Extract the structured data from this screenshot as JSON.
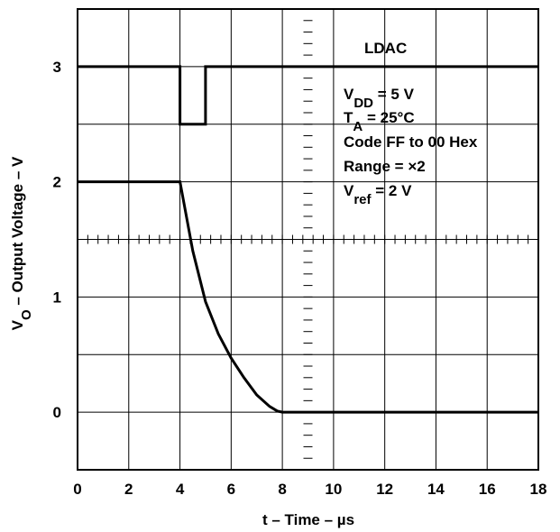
{
  "chart_data": {
    "type": "line",
    "title": "",
    "xlabel": "t – Time – µs",
    "ylabel": {
      "prefix": "V",
      "sub": "O",
      "suffix": " – Output Voltage – V"
    },
    "xlim": [
      0,
      18
    ],
    "ylim": [
      -0.5,
      3.5
    ],
    "x_ticks": [
      "0",
      "2",
      "4",
      "6",
      "8",
      "10",
      "12",
      "14",
      "16",
      "18"
    ],
    "y_ticks": [
      {
        "value": 0,
        "label": "0"
      },
      {
        "value": 1,
        "label": "1"
      },
      {
        "value": 2,
        "label": "2"
      },
      {
        "value": 3,
        "label": "3"
      }
    ],
    "grid": true,
    "series": [
      {
        "name": "LDAC",
        "x": [
          0,
          4,
          4,
          5,
          5,
          18
        ],
        "y": [
          3,
          3,
          2.5,
          2.5,
          3,
          3
        ]
      },
      {
        "name": "",
        "x": [
          0,
          4,
          4.5,
          5,
          5.5,
          6,
          6.5,
          7,
          7.5,
          7.8,
          8,
          18
        ],
        "y": [
          2,
          2,
          1.4,
          0.96,
          0.68,
          0.47,
          0.3,
          0.15,
          0.05,
          0.01,
          0,
          0
        ]
      }
    ],
    "annotations": {
      "ldac_label": "LDAC",
      "conditions": [
        {
          "prefix": "V",
          "sub": "DD",
          "suffix": " = 5 V"
        },
        {
          "prefix": "T",
          "sub": "A",
          "suffix": " = 25°C"
        },
        {
          "prefix": "Code FF to 00 Hex",
          "sub": "",
          "suffix": ""
        },
        {
          "prefix": "Range = ×2",
          "sub": "",
          "suffix": ""
        },
        {
          "prefix": "V",
          "sub": "ref",
          "suffix": " = 2 V"
        }
      ]
    }
  }
}
